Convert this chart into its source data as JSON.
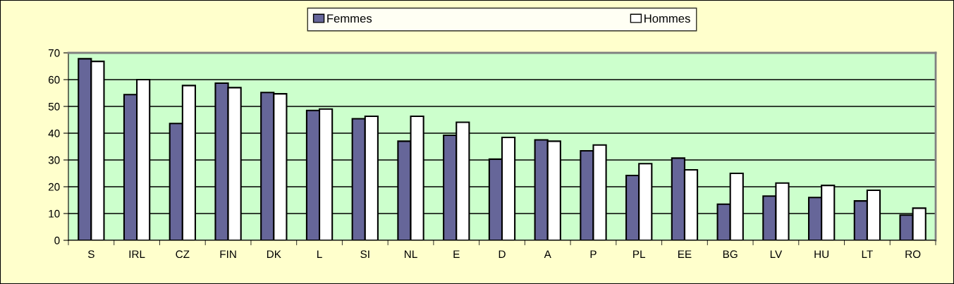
{
  "chart_data": {
    "type": "bar",
    "categories": [
      "S",
      "IRL",
      "CZ",
      "FIN",
      "DK",
      "L",
      "SI",
      "NL",
      "E",
      "D",
      "A",
      "P",
      "PL",
      "EE",
      "BG",
      "LV",
      "HU",
      "LT",
      "RO"
    ],
    "series": [
      {
        "name": "Femmes",
        "color": "#666699",
        "values": [
          67.8,
          54.4,
          43.6,
          58.7,
          55.2,
          48.5,
          45.4,
          37,
          39.2,
          30.3,
          37.5,
          33.4,
          24.2,
          30.7,
          13.5,
          16.5,
          16,
          14.7,
          9.4
        ]
      },
      {
        "name": "Hommes",
        "color": "#ffffff",
        "values": [
          66.8,
          60,
          57.8,
          57,
          54.7,
          49,
          46.3,
          46.3,
          44.1,
          38.4,
          37,
          35.6,
          28.6,
          26.3,
          25,
          21.4,
          20.5,
          18.7,
          12
        ]
      }
    ],
    "ylim": [
      0,
      70
    ],
    "yticks": [
      0,
      10,
      20,
      30,
      40,
      50,
      60,
      70
    ],
    "grid": "y",
    "legend": "top"
  }
}
